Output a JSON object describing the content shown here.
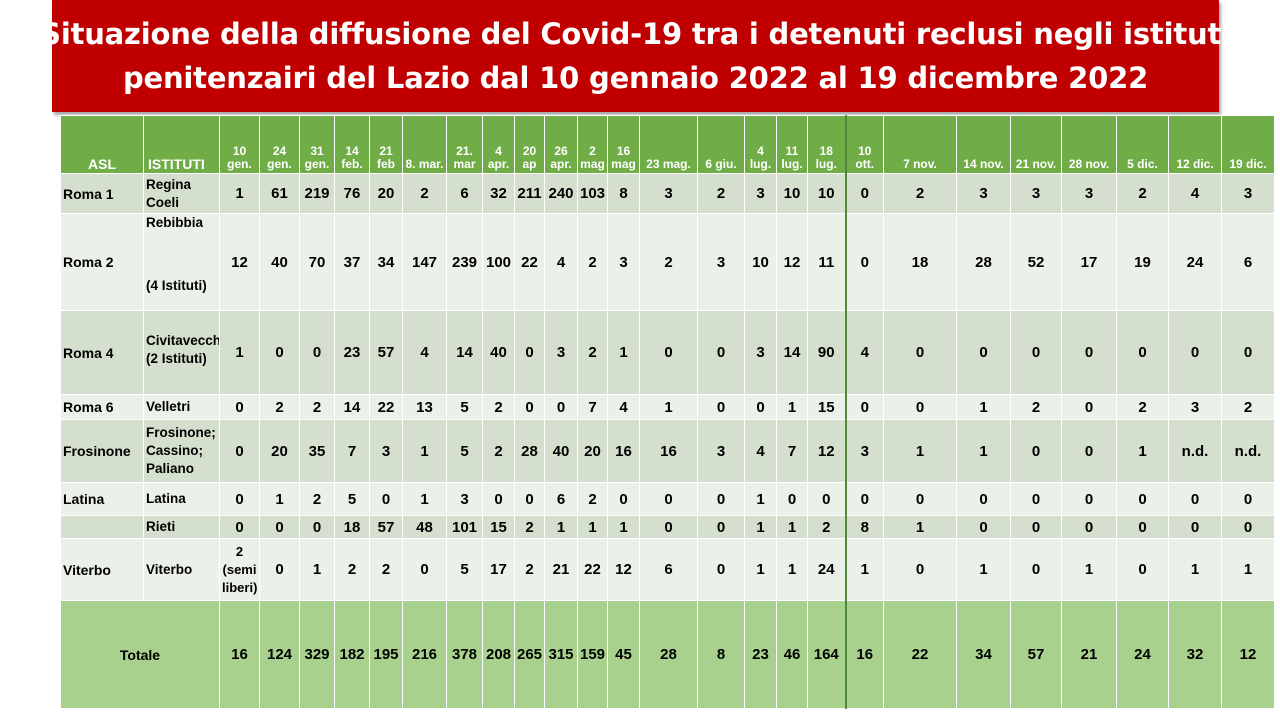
{
  "title": {
    "line1": "Situazione della diffusione del Covid-19 tra i detenuti reclusi negli istituti",
    "line2": "penitenzairi  del Lazio dal 10 gennaio 2022 al 19 dicembre 2022"
  },
  "colors": {
    "banner": "#c00000",
    "header": "#70ad47",
    "row_dark": "#d4e0cd",
    "row_light": "#ebf0e8",
    "total": "#a9d18e"
  },
  "table": {
    "header": {
      "asl": "ASL",
      "istituti": "ISTITUTI",
      "dates": [
        "10 gen.",
        "24 gen.",
        "31 gen.",
        "14 feb.",
        "21 feb",
        "8. mar.",
        "21. mar",
        "4 apr.",
        "20 ap",
        "26 apr.",
        "2 mag",
        "16 mag",
        "23 mag.",
        "6 giu.",
        "4 lug.",
        "11 lug.",
        "18 lug.",
        "10 ott.",
        "7 nov.",
        "14 nov.",
        "21 nov.",
        "28 nov.",
        "5 dic.",
        "12 dic.",
        "19 dic."
      ]
    },
    "rows": [
      {
        "asl": "Roma 1",
        "istituto": "Regina Coeli",
        "values": [
          "1",
          "61",
          "219",
          "76",
          "20",
          "2",
          "6",
          "32",
          "211",
          "240",
          "103",
          "8",
          "3",
          "2",
          "3",
          "10",
          "10",
          "0",
          "2",
          "3",
          "3",
          "3",
          "2",
          "4",
          "3"
        ]
      },
      {
        "asl": "Roma 2",
        "istituto": "Rebibbia",
        "istituto_sub": "(4 Istituti)",
        "values": [
          "12",
          "40",
          "70",
          "37",
          "34",
          "147",
          "239",
          "100",
          "22",
          "4",
          "2",
          "3",
          "2",
          "3",
          "10",
          "12",
          "11",
          "0",
          "18",
          "28",
          "52",
          "17",
          "19",
          "24",
          "6"
        ]
      },
      {
        "asl": "Roma 4",
        "istituto": "Civitavecchia",
        "istituto_sub": "(2 Istituti)",
        "values": [
          "1",
          "0",
          "0",
          "23",
          "57",
          "4",
          "14",
          "40",
          "0",
          "3",
          "2",
          "1",
          "0",
          "0",
          "3",
          "14",
          "90",
          "4",
          "0",
          "0",
          "0",
          "0",
          "0",
          "0",
          "0"
        ]
      },
      {
        "asl": "Roma 6",
        "istituto": "Velletri",
        "values": [
          "0",
          "2",
          "2",
          "14",
          "22",
          "13",
          "5",
          "2",
          "0",
          "0",
          "7",
          "4",
          "1",
          "0",
          "0",
          "1",
          "15",
          "0",
          "0",
          "1",
          "2",
          "0",
          "2",
          "3",
          "2"
        ]
      },
      {
        "asl": "Frosinone",
        "istituto": "Frosinone; Cassino; Paliano",
        "values": [
          "0",
          "20",
          "35",
          "7",
          "3",
          "1",
          "5",
          "2",
          "28",
          "40",
          "20",
          "16",
          "16",
          "3",
          "4",
          "7",
          "12",
          "3",
          "1",
          "1",
          "0",
          "0",
          "1",
          "n.d.",
          "n.d."
        ]
      },
      {
        "asl": "Latina",
        "istituto": "Latina",
        "values": [
          "0",
          "1",
          "2",
          "5",
          "0",
          "1",
          "3",
          "0",
          "0",
          "6",
          "2",
          "0",
          "0",
          "0",
          "1",
          "0",
          "0",
          "0",
          "0",
          "0",
          "0",
          "0",
          "0",
          "0",
          "0"
        ]
      },
      {
        "asl": "",
        "istituto": "Rieti",
        "values": [
          "0",
          "0",
          "0",
          "18",
          "57",
          "48",
          "101",
          "15",
          "2",
          "1",
          "1",
          "1",
          "0",
          "0",
          "1",
          "1",
          "2",
          "8",
          "1",
          "0",
          "0",
          "0",
          "0",
          "0",
          "0"
        ]
      },
      {
        "asl": "Viterbo",
        "istituto": "Viterbo",
        "values": [
          "2 (semi liberi)",
          "0",
          "1",
          "2",
          "2",
          "0",
          "5",
          "17",
          "2",
          "21",
          "22",
          "12",
          "6",
          "0",
          "1",
          "1",
          "24",
          "1",
          "0",
          "1",
          "0",
          "1",
          "0",
          "1",
          "1"
        ]
      }
    ],
    "total": {
      "label": "Totale",
      "values": [
        "16",
        "124",
        "329",
        "182",
        "195",
        "216",
        "378",
        "208",
        "265",
        "315",
        "159",
        "45",
        "28",
        "8",
        "23",
        "46",
        "164",
        "16",
        "22",
        "34",
        "57",
        "21",
        "24",
        "32",
        "12"
      ]
    }
  }
}
